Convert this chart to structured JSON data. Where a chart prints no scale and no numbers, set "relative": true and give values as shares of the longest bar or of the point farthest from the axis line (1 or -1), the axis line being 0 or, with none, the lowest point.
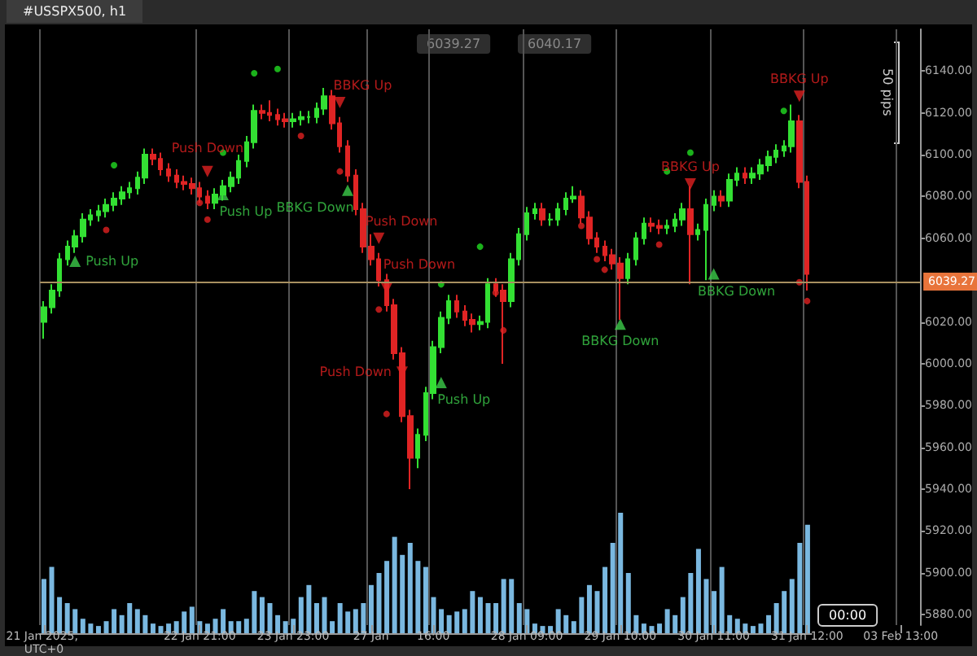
{
  "chart_data": [
    {
      "type": "candlestick",
      "title": "#USSPX500, h1",
      "categories": [
        "21 Jan 2025, UTC+0",
        null,
        null,
        null,
        null,
        null,
        null,
        null,
        null,
        null,
        null,
        null,
        null,
        null,
        null,
        null,
        null,
        null,
        null,
        null,
        "22 Jan 21:00",
        null,
        null,
        null,
        null,
        null,
        null,
        null,
        null,
        null,
        null,
        null,
        "23 Jan 23:00",
        null,
        null,
        null,
        null,
        null,
        null,
        null,
        null,
        null,
        "27 Jan",
        null,
        null,
        null,
        null,
        null,
        null,
        null,
        "16:00",
        null,
        null,
        null,
        null,
        null,
        null,
        null,
        null,
        null,
        null,
        null,
        "28 Jan 09:00",
        null,
        null,
        null,
        null,
        null,
        null,
        null,
        null,
        null,
        null,
        null,
        "29 Jan 10:00",
        null,
        null,
        null,
        null,
        null,
        null,
        null,
        null,
        null,
        null,
        null,
        "30 Jan 11:00",
        null,
        null,
        null,
        null,
        null,
        null,
        null,
        null,
        null,
        null,
        null,
        "31 Jan 12:00",
        null,
        null,
        null,
        null,
        null,
        null,
        null,
        null,
        null,
        null,
        null,
        "03 Feb 13:00",
        null,
        null
      ],
      "series": [
        {
          "ohlc": [
            [
              6020,
              6030,
              6012,
              6027
            ],
            [
              6027,
              6038,
              6024,
              6035
            ],
            [
              6035,
              6053,
              6032,
              6050
            ],
            [
              6050,
              6059,
              6047,
              6056
            ],
            [
              6056,
              6064,
              6053,
              6061
            ],
            [
              6061,
              6072,
              6058,
              6069
            ],
            [
              6069,
              6074,
              6066,
              6071
            ],
            [
              6071,
              6076,
              6068,
              6073
            ],
            [
              6073,
              6079,
              6070,
              6076
            ],
            [
              6076,
              6082,
              6073,
              6079
            ],
            [
              6079,
              6085,
              6076,
              6082
            ],
            [
              6082,
              6087,
              6079,
              6084
            ],
            [
              6084,
              6092,
              6081,
              6089
            ],
            [
              6089,
              6103,
              6086,
              6100
            ],
            [
              6100,
              6103,
              6095,
              6098
            ],
            [
              6098,
              6101,
              6090,
              6093
            ],
            [
              6093,
              6096,
              6087,
              6090
            ],
            [
              6090,
              6093,
              6084,
              6087
            ],
            [
              6087,
              6090,
              6083,
              6086
            ],
            [
              6086,
              6089,
              6081,
              6084
            ],
            [
              6084,
              6087,
              6077,
              6080
            ],
            [
              6080,
              6083,
              6074,
              6077
            ],
            [
              6077,
              6084,
              6074,
              6081
            ],
            [
              6081,
              6088,
              6078,
              6085
            ],
            [
              6085,
              6092,
              6082,
              6089
            ],
            [
              6089,
              6100,
              6086,
              6097
            ],
            [
              6097,
              6109,
              6094,
              6106
            ],
            [
              6106,
              6124,
              6103,
              6121
            ],
            [
              6121,
              6124,
              6117,
              6120
            ],
            [
              6120,
              6126,
              6116,
              6119
            ],
            [
              6119,
              6122,
              6114,
              6117
            ],
            [
              6117,
              6120,
              6113,
              6116
            ],
            [
              6116,
              6120,
              6113,
              6117
            ],
            [
              6117,
              6121,
              6114,
              6118
            ],
            [
              6118,
              6121,
              6115,
              6118
            ],
            [
              6118,
              6125,
              6115,
              6122
            ],
            [
              6122,
              6132,
              6119,
              6128
            ],
            [
              6128,
              6131,
              6112,
              6115
            ],
            [
              6115,
              6118,
              6101,
              6104
            ],
            [
              6104,
              6107,
              6087,
              6090
            ],
            [
              6090,
              6093,
              6071,
              6074
            ],
            [
              6074,
              6077,
              6053,
              6056
            ],
            [
              6056,
              6062,
              6047,
              6050
            ],
            [
              6050,
              6053,
              6037,
              6040
            ],
            [
              6040,
              6043,
              6025,
              6028
            ],
            [
              6028,
              6031,
              6002,
              6005
            ],
            [
              6005,
              6008,
              5972,
              5975
            ],
            [
              5975,
              5978,
              5940,
              5955
            ],
            [
              5955,
              5969,
              5950,
              5966
            ],
            [
              5966,
              5989,
              5963,
              5986
            ],
            [
              5986,
              6011,
              5983,
              6008
            ],
            [
              6008,
              6025,
              6005,
              6022
            ],
            [
              6022,
              6033,
              6019,
              6030
            ],
            [
              6030,
              6033,
              6022,
              6025
            ],
            [
              6025,
              6028,
              6018,
              6021
            ],
            [
              6021,
              6024,
              6015,
              6019
            ],
            [
              6019,
              6023,
              6016,
              6020
            ],
            [
              6020,
              6041,
              6017,
              6038
            ],
            [
              6038,
              6041,
              6032,
              6035
            ],
            [
              6035,
              6038,
              6000,
              6030
            ],
            [
              6030,
              6053,
              6027,
              6050
            ],
            [
              6050,
              6065,
              6047,
              6062
            ],
            [
              6062,
              6075,
              6059,
              6072
            ],
            [
              6072,
              6077,
              6069,
              6074
            ],
            [
              6074,
              6077,
              6066,
              6069
            ],
            [
              6069,
              6072,
              6066,
              6069
            ],
            [
              6069,
              6077,
              6066,
              6074
            ],
            [
              6074,
              6082,
              6071,
              6079
            ],
            [
              6079,
              6085,
              6077,
              6080
            ],
            [
              6080,
              6083,
              6067,
              6070
            ],
            [
              6070,
              6073,
              6057,
              6060
            ],
            [
              6060,
              6063,
              6053,
              6056
            ],
            [
              6056,
              6059,
              6049,
              6052
            ],
            [
              6052,
              6055,
              6045,
              6048
            ],
            [
              6048,
              6051,
              6021,
              6041
            ],
            [
              6041,
              6053,
              6038,
              6050
            ],
            [
              6050,
              6063,
              6047,
              6060
            ],
            [
              6060,
              6070,
              6057,
              6067
            ],
            [
              6067,
              6070,
              6063,
              6066
            ],
            [
              6066,
              6069,
              6062,
              6065
            ],
            [
              6065,
              6069,
              6062,
              6066
            ],
            [
              6066,
              6072,
              6063,
              6069
            ],
            [
              6069,
              6077,
              6066,
              6074
            ],
            [
              6074,
              6085,
              6038,
              6062
            ],
            [
              6062,
              6067,
              6059,
              6064
            ],
            [
              6064,
              6079,
              6040,
              6076
            ],
            [
              6076,
              6083,
              6073,
              6080
            ],
            [
              6080,
              6083,
              6075,
              6078
            ],
            [
              6078,
              6091,
              6075,
              6088
            ],
            [
              6088,
              6094,
              6085,
              6091
            ],
            [
              6091,
              6094,
              6086,
              6089
            ],
            [
              6089,
              6094,
              6086,
              6091
            ],
            [
              6091,
              6098,
              6088,
              6095
            ],
            [
              6095,
              6102,
              6092,
              6099
            ],
            [
              6099,
              6105,
              6096,
              6102
            ],
            [
              6102,
              6107,
              6099,
              6104
            ],
            [
              6104,
              6124,
              6101,
              6116
            ],
            [
              6116,
              6119,
              6084,
              6087
            ],
            [
              6087,
              6090,
              6035,
              6043
            ],
            null,
            null,
            null,
            null,
            null,
            null,
            null,
            null,
            null,
            null,
            null,
            null,
            null,
            null
          ],
          "colors": [
            "#33e033",
            "#33e033",
            "#33e033",
            "#33e033",
            "#33e033",
            "#33e033",
            "#33e033",
            "#33e033",
            "#33e033",
            "#33e033",
            "#33e033",
            "#33e033",
            "#33e033",
            "#33e033",
            "#e02424",
            "#e02424",
            "#e02424",
            "#e02424",
            "#e02424",
            "#e02424",
            "#e02424",
            "#e02424",
            "#33e033",
            "#33e033",
            "#33e033",
            "#33e033",
            "#33e033",
            "#33e033",
            "#e02424",
            "#e02424",
            "#e02424",
            "#e02424",
            "#33e033",
            "#33e033",
            "#33e033",
            "#33e033",
            "#33e033",
            "#e02424",
            "#e02424",
            "#e02424",
            "#e02424",
            "#e02424",
            "#e02424",
            "#e02424",
            "#e02424",
            "#e02424",
            "#e02424",
            "#e02424",
            "#33e033",
            "#33e033",
            "#33e033",
            "#33e033",
            "#33e033",
            "#e02424",
            "#e02424",
            "#e02424",
            "#33e033",
            "#33e033",
            "#e02424",
            "#e02424",
            "#33e033",
            "#33e033",
            "#33e033",
            "#33e033",
            "#e02424",
            "#33e033",
            "#33e033",
            "#33e033",
            "#33e033",
            "#e02424",
            "#e02424",
            "#e02424",
            "#e02424",
            "#e02424",
            "#e02424",
            "#33e033",
            "#33e033",
            "#33e033",
            "#e02424",
            "#e02424",
            "#33e033",
            "#33e033",
            "#33e033",
            "#e02424",
            "#33e033",
            "#33e033",
            "#33e033",
            "#e02424",
            "#33e033",
            "#33e033",
            "#e02424",
            "#33e033",
            "#33e033",
            "#33e033",
            "#33e033",
            "#33e033",
            "#33e033",
            "#e02424",
            "#e02424",
            null,
            null,
            null,
            null,
            null,
            null,
            null,
            null,
            null,
            null,
            null,
            null,
            null,
            null
          ]
        },
        {
          "type": "scatter",
          "marker": "circle",
          "color": "#22dd22",
          "values": [
            null,
            null,
            null,
            null,
            null,
            null,
            null,
            null,
            null,
            6095,
            null,
            null,
            null,
            null,
            null,
            null,
            null,
            null,
            null,
            null,
            null,
            null,
            null,
            6101,
            null,
            null,
            null,
            6139,
            null,
            null,
            6141,
            null,
            null,
            null,
            null,
            null,
            null,
            null,
            null,
            null,
            null,
            null,
            null,
            null,
            null,
            null,
            null,
            null,
            null,
            null,
            null,
            6038,
            null,
            null,
            null,
            null,
            6056,
            null,
            null,
            null,
            null,
            null,
            null,
            null,
            null,
            null,
            null,
            null,
            null,
            null,
            null,
            null,
            null,
            null,
            null,
            null,
            null,
            null,
            null,
            null,
            6092,
            null,
            null,
            6101,
            null,
            null,
            null,
            null,
            null,
            null,
            null,
            null,
            null,
            null,
            null,
            6121,
            null,
            null,
            null,
            null,
            null,
            null,
            null,
            null,
            null,
            null,
            null,
            null,
            null,
            null,
            null,
            null,
            null
          ]
        },
        {
          "type": "scatter",
          "marker": "circle",
          "color": "#e02020",
          "values": [
            null,
            null,
            null,
            null,
            null,
            null,
            null,
            null,
            6064,
            null,
            null,
            null,
            null,
            null,
            null,
            null,
            null,
            null,
            null,
            null,
            6077,
            6069,
            null,
            null,
            null,
            null,
            null,
            null,
            null,
            null,
            null,
            null,
            null,
            6109,
            null,
            null,
            null,
            null,
            6092,
            null,
            null,
            null,
            null,
            6026,
            5976,
            null,
            null,
            null,
            null,
            null,
            null,
            null,
            null,
            null,
            null,
            null,
            null,
            null,
            6034,
            6016,
            null,
            null,
            null,
            null,
            null,
            null,
            null,
            null,
            null,
            6066,
            null,
            6050,
            6045,
            null,
            null,
            null,
            null,
            null,
            null,
            6057,
            null,
            null,
            null,
            null,
            null,
            null,
            null,
            null,
            null,
            null,
            null,
            null,
            null,
            null,
            null,
            null,
            null,
            6039,
            6030,
            null,
            null,
            null,
            null,
            null,
            null,
            null,
            null,
            null,
            null,
            null,
            null,
            null,
            null
          ]
        },
        {
          "type": "scatter",
          "marker": "triangle",
          "color": "#e02020",
          "values": [
            null,
            null,
            null,
            null,
            null,
            null,
            null,
            null,
            null,
            null,
            null,
            null,
            null,
            null,
            null,
            null,
            null,
            null,
            null,
            null,
            null,
            6092,
            null,
            null,
            null,
            null,
            null,
            null,
            null,
            null,
            null,
            null,
            null,
            null,
            null,
            null,
            null,
            null,
            6125,
            null,
            null,
            null,
            null,
            6060,
            6036,
            null,
            5996,
            null,
            null,
            null,
            null,
            null,
            null,
            null,
            null,
            null,
            null,
            null,
            null,
            null,
            null,
            null,
            null,
            null,
            null,
            null,
            null,
            null,
            null,
            null,
            null,
            null,
            null,
            null,
            null,
            null,
            null,
            null,
            null,
            null,
            null,
            null,
            null,
            6086,
            null,
            null,
            null,
            null,
            null,
            null,
            null,
            null,
            null,
            null,
            null,
            null,
            null,
            6128,
            null,
            null,
            null,
            null,
            null,
            null,
            null,
            null,
            null,
            null,
            null,
            null,
            null,
            null,
            null
          ],
          "value_labels": [
            null,
            null,
            null,
            null,
            null,
            null,
            null,
            null,
            null,
            null,
            null,
            null,
            null,
            null,
            null,
            null,
            null,
            null,
            null,
            null,
            null,
            "Push Down",
            null,
            null,
            null,
            null,
            null,
            null,
            null,
            null,
            null,
            null,
            null,
            null,
            null,
            null,
            null,
            null,
            "BBKG Up",
            null,
            null,
            null,
            null,
            "Push Down",
            "Push Down",
            null,
            "Push Down",
            null,
            null,
            null,
            null,
            null,
            null,
            null,
            null,
            null,
            null,
            null,
            null,
            null,
            null,
            null,
            null,
            null,
            null,
            null,
            null,
            null,
            null,
            null,
            null,
            null,
            null,
            null,
            null,
            null,
            null,
            null,
            null,
            null,
            null,
            null,
            null,
            "BBKG Up",
            null,
            null,
            null,
            null,
            null,
            null,
            null,
            null,
            null,
            null,
            null,
            null,
            null,
            "BBKG Up",
            null,
            null,
            null,
            null,
            null,
            null,
            null,
            null,
            null,
            null,
            null,
            null,
            null,
            null,
            null
          ]
        },
        {
          "type": "scatter",
          "marker": "triangle",
          "color": "#3ccc4a",
          "values": [
            null,
            null,
            null,
            null,
            6049,
            null,
            null,
            null,
            null,
            null,
            null,
            null,
            null,
            null,
            null,
            null,
            null,
            null,
            null,
            null,
            null,
            null,
            null,
            6081,
            null,
            null,
            null,
            null,
            null,
            null,
            null,
            null,
            null,
            null,
            null,
            null,
            null,
            null,
            null,
            6083,
            null,
            null,
            null,
            null,
            null,
            null,
            null,
            null,
            null,
            null,
            null,
            5991,
            null,
            null,
            null,
            null,
            null,
            null,
            null,
            null,
            null,
            null,
            null,
            null,
            null,
            null,
            null,
            null,
            null,
            null,
            null,
            null,
            null,
            null,
            6019,
            null,
            null,
            null,
            null,
            null,
            null,
            null,
            null,
            null,
            null,
            null,
            6043,
            null,
            null,
            null,
            null,
            null,
            null,
            null,
            null,
            null,
            null,
            null,
            null,
            null,
            null,
            null,
            null,
            null,
            null,
            null,
            null,
            null,
            null,
            null,
            null,
            null,
            null
          ],
          "value_labels": [
            null,
            null,
            null,
            null,
            "Push Up",
            null,
            null,
            null,
            null,
            null,
            null,
            null,
            null,
            null,
            null,
            null,
            null,
            null,
            null,
            null,
            null,
            null,
            null,
            "Push Up",
            null,
            null,
            null,
            null,
            null,
            null,
            null,
            null,
            null,
            null,
            null,
            null,
            null,
            null,
            null,
            "BBKG Down",
            null,
            null,
            null,
            null,
            null,
            null,
            null,
            null,
            null,
            null,
            null,
            "Push Up",
            null,
            null,
            null,
            null,
            null,
            null,
            null,
            null,
            null,
            null,
            null,
            null,
            null,
            null,
            null,
            null,
            null,
            null,
            null,
            null,
            null,
            null,
            "BBKG Down",
            null,
            null,
            null,
            null,
            null,
            null,
            null,
            null,
            null,
            null,
            null,
            "BBKG Down",
            null,
            null,
            null,
            null,
            null,
            null,
            null,
            null,
            null,
            null,
            null,
            null,
            null,
            null,
            null,
            null,
            null,
            null,
            null,
            null,
            null,
            null,
            null,
            null,
            null,
            null
          ]
        }
      ],
      "ylim": [
        5875,
        6160
      ],
      "yticks": [
        {
          "value": 5880,
          "label": "5880.00"
        },
        {
          "value": 5900,
          "label": "5900.00"
        },
        {
          "value": 5920,
          "label": "5920.00"
        },
        {
          "value": 5940,
          "label": "5940.00"
        },
        {
          "value": 5960,
          "label": "5960.00"
        },
        {
          "value": 5980,
          "label": "5980.00"
        },
        {
          "value": 6000,
          "label": "6000.00"
        },
        {
          "value": 6020,
          "label": "6020.00"
        },
        {
          "value": 6060,
          "label": "6060.00"
        },
        {
          "value": 6080,
          "label": "6080.00"
        },
        {
          "value": 6100,
          "label": "6100.00"
        },
        {
          "value": 6120,
          "label": "6120.00"
        },
        {
          "value": 6140,
          "label": "6140.00"
        }
      ],
      "ref_lines": [
        {
          "axis": "y",
          "value": 6039.27,
          "label": "6039.27",
          "color": "#a89060"
        }
      ],
      "annotations": [
        "6039.27",
        "6040.17",
        "50 pips",
        "00:00"
      ],
      "grid": "x"
    },
    {
      "type": "bar",
      "relative": true,
      "color": "#7ab8e0",
      "categories": [
        null,
        null,
        null,
        null,
        null,
        null,
        null,
        null,
        null,
        null,
        null,
        null,
        null,
        null,
        null,
        null,
        null,
        null,
        null,
        null,
        null,
        null,
        null,
        null,
        null,
        null,
        null,
        null,
        null,
        null,
        null,
        null,
        null,
        null,
        null,
        null,
        null,
        null,
        null,
        null,
        null,
        null,
        null,
        null,
        null,
        null,
        null,
        null,
        null,
        null,
        null,
        null,
        null,
        null,
        null,
        null,
        null,
        null,
        null,
        null,
        null,
        null,
        null,
        null,
        null,
        null,
        null,
        null,
        null,
        null,
        null,
        null,
        null,
        null,
        null,
        null,
        null,
        null,
        null,
        null,
        null,
        null,
        null,
        null,
        null,
        null,
        null,
        null,
        null,
        null,
        null,
        null,
        null,
        null,
        null,
        null,
        null,
        null,
        null
      ],
      "values": [
        0.45,
        0.55,
        0.3,
        0.25,
        0.2,
        0.12,
        0.08,
        0.06,
        0.1,
        0.2,
        0.15,
        0.25,
        0.2,
        0.15,
        0.08,
        0.06,
        0.08,
        0.1,
        0.18,
        0.22,
        0.1,
        0.08,
        0.12,
        0.2,
        0.1,
        0.1,
        0.12,
        0.35,
        0.3,
        0.25,
        0.15,
        0.1,
        0.12,
        0.3,
        0.4,
        0.25,
        0.3,
        0.1,
        0.25,
        0.18,
        0.2,
        0.25,
        0.4,
        0.5,
        0.6,
        0.8,
        0.65,
        0.75,
        0.6,
        0.55,
        0.3,
        0.2,
        0.15,
        0.18,
        0.2,
        0.35,
        0.3,
        0.25,
        0.25,
        0.45,
        0.45,
        0.25,
        0.2,
        0.08,
        0.06,
        0.06,
        0.2,
        0.15,
        0.1,
        0.3,
        0.4,
        0.35,
        0.55,
        0.75,
        1.0,
        0.5,
        0.15,
        0.08,
        0.06,
        0.08,
        0.2,
        0.15,
        0.3,
        0.5,
        0.7,
        0.45,
        0.35,
        0.55,
        0.15,
        0.12,
        0.08,
        0.06,
        0.08,
        0.15,
        0.25,
        0.35,
        0.45,
        0.75,
        0.9
      ]
    }
  ]
}
